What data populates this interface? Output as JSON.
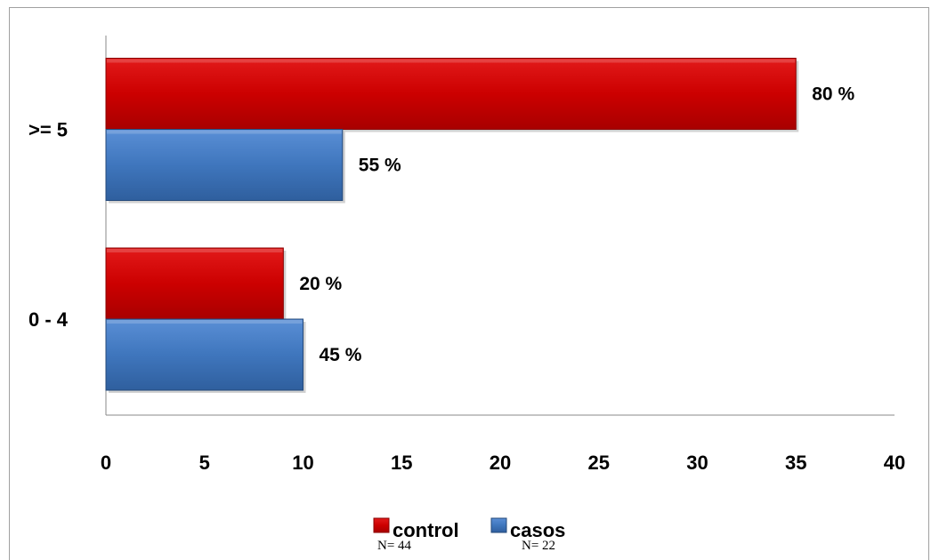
{
  "chart_data": {
    "type": "bar",
    "orientation": "horizontal",
    "categories": [
      ">= 5",
      "0 - 4"
    ],
    "series": [
      {
        "name": "control",
        "note": "N= 44",
        "color": "#cc0000",
        "values": [
          35,
          9
        ],
        "labels": [
          "80 %",
          "20 %"
        ]
      },
      {
        "name": "casos",
        "note": "N= 22",
        "color": "#3f76bd",
        "values": [
          12,
          10
        ],
        "labels": [
          "55 %",
          "45 %"
        ]
      }
    ],
    "xlim": [
      0,
      40
    ],
    "xticks": [
      "0",
      "5",
      "10",
      "15",
      "20",
      "25",
      "30",
      "35",
      "40"
    ],
    "grid": false,
    "legend_position": "bottom"
  }
}
